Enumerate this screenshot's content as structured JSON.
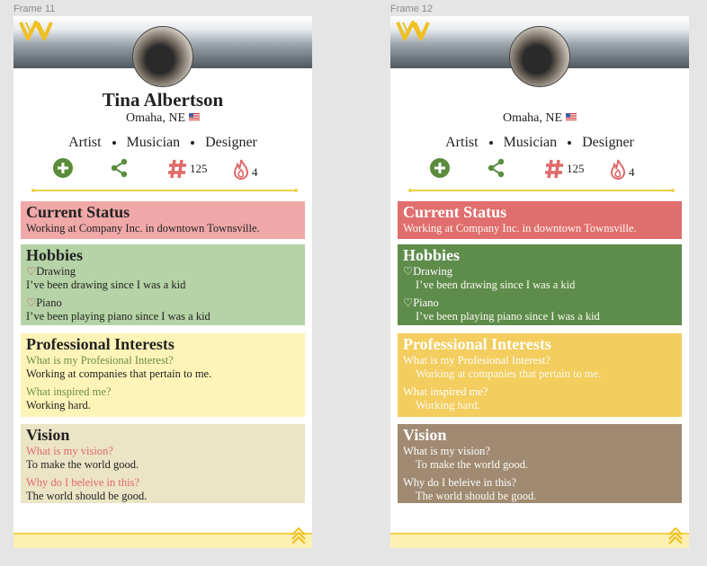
{
  "frames": [
    {
      "label": "Frame 11",
      "name": "Tina Albertson",
      "location": "Omaha, NE",
      "roles": [
        "Artist",
        "Musician",
        "Designer"
      ],
      "stats": {
        "posts": 125,
        "streak": 4
      },
      "sections": [
        {
          "title": "Current Status",
          "items": [
            {
              "text": "Working at Company Inc. in downtown Townsville."
            }
          ]
        },
        {
          "title": "Hobbies",
          "items": [
            {
              "heading": "Drawing",
              "text": "I’ve been drawing since I was a kid"
            },
            {
              "heading": "Piano",
              "text": "I’ve been playing piano since I was a kid"
            }
          ]
        },
        {
          "title": "Professional Interests",
          "items": [
            {
              "heading": "What is my Profesional Interest?",
              "text": "Working at companies that pertain to me."
            },
            {
              "heading": "What inspired me?",
              "text": "Working hard."
            }
          ]
        },
        {
          "title": "Vision",
          "items": [
            {
              "heading": "What is my vision?",
              "text": "To make the world good."
            },
            {
              "heading": "Why do I beleive in this?",
              "text": "The world should be good."
            }
          ]
        }
      ]
    },
    {
      "label": "Frame 12",
      "location": "Omaha, NE",
      "roles": [
        "Artist",
        "Musician",
        "Designer"
      ],
      "stats": {
        "posts": 125,
        "streak": 4
      },
      "sections": [
        {
          "title": "Current Status",
          "items": [
            {
              "text": "Working at Company Inc. in downtown Townsville."
            }
          ]
        },
        {
          "title": "Hobbies",
          "items": [
            {
              "heading": "Drawing",
              "text": "I’ve been drawing since I was a kid"
            },
            {
              "heading": "Piano",
              "text": "I’ve been playing piano since I was a kid"
            }
          ]
        },
        {
          "title": "Professional Interests",
          "items": [
            {
              "heading": "What is my Profesional Interest?",
              "text": "Working at companies that pertain to me."
            },
            {
              "heading": "What inspired me?",
              "text": "Working hard."
            }
          ]
        },
        {
          "title": "Vision",
          "items": [
            {
              "heading": "What is my vision?",
              "text": "To make the world good."
            },
            {
              "heading": "Why do I beleive in this?",
              "text": "The world should be good."
            }
          ]
        }
      ]
    }
  ]
}
